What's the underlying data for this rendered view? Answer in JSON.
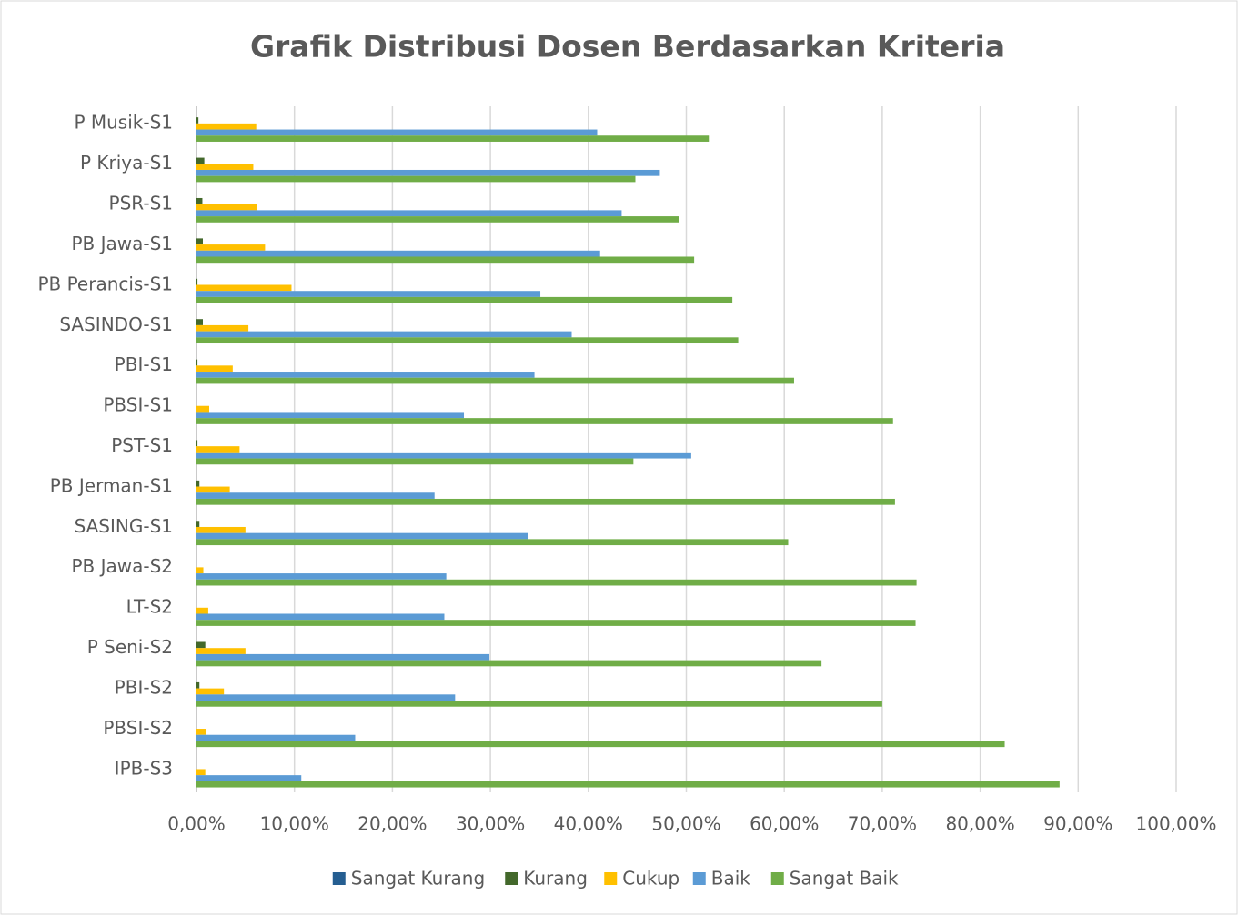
{
  "chart_data": {
    "type": "hbar_grouped",
    "title": "Grafik Distribusi Dosen Berdasarkan Kriteria",
    "categories": [
      "P Musik-S1",
      "P Kriya-S1",
      "PSR-S1",
      "PB Jawa-S1",
      "PB Perancis-S1",
      "SASINDO-S1",
      "PBI-S1",
      "PBSI-S1",
      "PST-S1",
      "PB Jerman-S1",
      "SASING-S1",
      "PB Jawa-S2",
      "LT-S2",
      "P Seni-S2",
      "PBI-S2",
      "PBSI-S2",
      "IPB-S3"
    ],
    "series": [
      {
        "name": "Sangat Kurang",
        "color": "#255e91",
        "values": [
          0,
          0,
          0,
          0,
          0,
          0,
          0,
          0,
          0,
          0,
          0,
          0,
          0,
          0,
          0,
          0,
          0
        ]
      },
      {
        "name": "Kurang",
        "color": "#43682b",
        "values": [
          0.2,
          0.8,
          0.6,
          0.65,
          0.1,
          0.65,
          0.1,
          0,
          0.1,
          0.3,
          0.3,
          0,
          0,
          0.9,
          0.3,
          0,
          0
        ]
      },
      {
        "name": "Cukup",
        "color": "#ffc000",
        "values": [
          6.1,
          5.8,
          6.2,
          7.0,
          9.7,
          5.3,
          3.7,
          1.3,
          4.4,
          3.4,
          5.0,
          0.7,
          1.2,
          5.0,
          2.8,
          1.0,
          0.9
        ]
      },
      {
        "name": "Baik",
        "color": "#5b9bd5",
        "values": [
          40.9,
          47.3,
          43.4,
          41.2,
          35.1,
          38.3,
          34.5,
          27.3,
          50.5,
          24.3,
          33.8,
          25.5,
          25.3,
          29.9,
          26.4,
          16.2,
          10.7
        ]
      },
      {
        "name": "Sangat Baik",
        "color": "#70ad47",
        "values": [
          52.3,
          44.8,
          49.3,
          50.8,
          54.7,
          55.3,
          61.0,
          71.1,
          44.6,
          71.3,
          60.4,
          73.5,
          73.4,
          63.8,
          70.0,
          82.5,
          88.1
        ]
      }
    ],
    "xlim": [
      0,
      100
    ],
    "xticks": [
      {
        "value": 0,
        "label": "0,00%"
      },
      {
        "value": 10,
        "label": "10,00%"
      },
      {
        "value": 20,
        "label": "20,00%"
      },
      {
        "value": 30,
        "label": "30,00%"
      },
      {
        "value": 40,
        "label": "40,00%"
      },
      {
        "value": 50,
        "label": "50,00%"
      },
      {
        "value": 60,
        "label": "60,00%"
      },
      {
        "value": 70,
        "label": "70,00%"
      },
      {
        "value": 80,
        "label": "80,00%"
      },
      {
        "value": 90,
        "label": "90,00%"
      },
      {
        "value": 100,
        "label": "100,00%"
      }
    ],
    "grid": true,
    "legend": "bottom"
  }
}
